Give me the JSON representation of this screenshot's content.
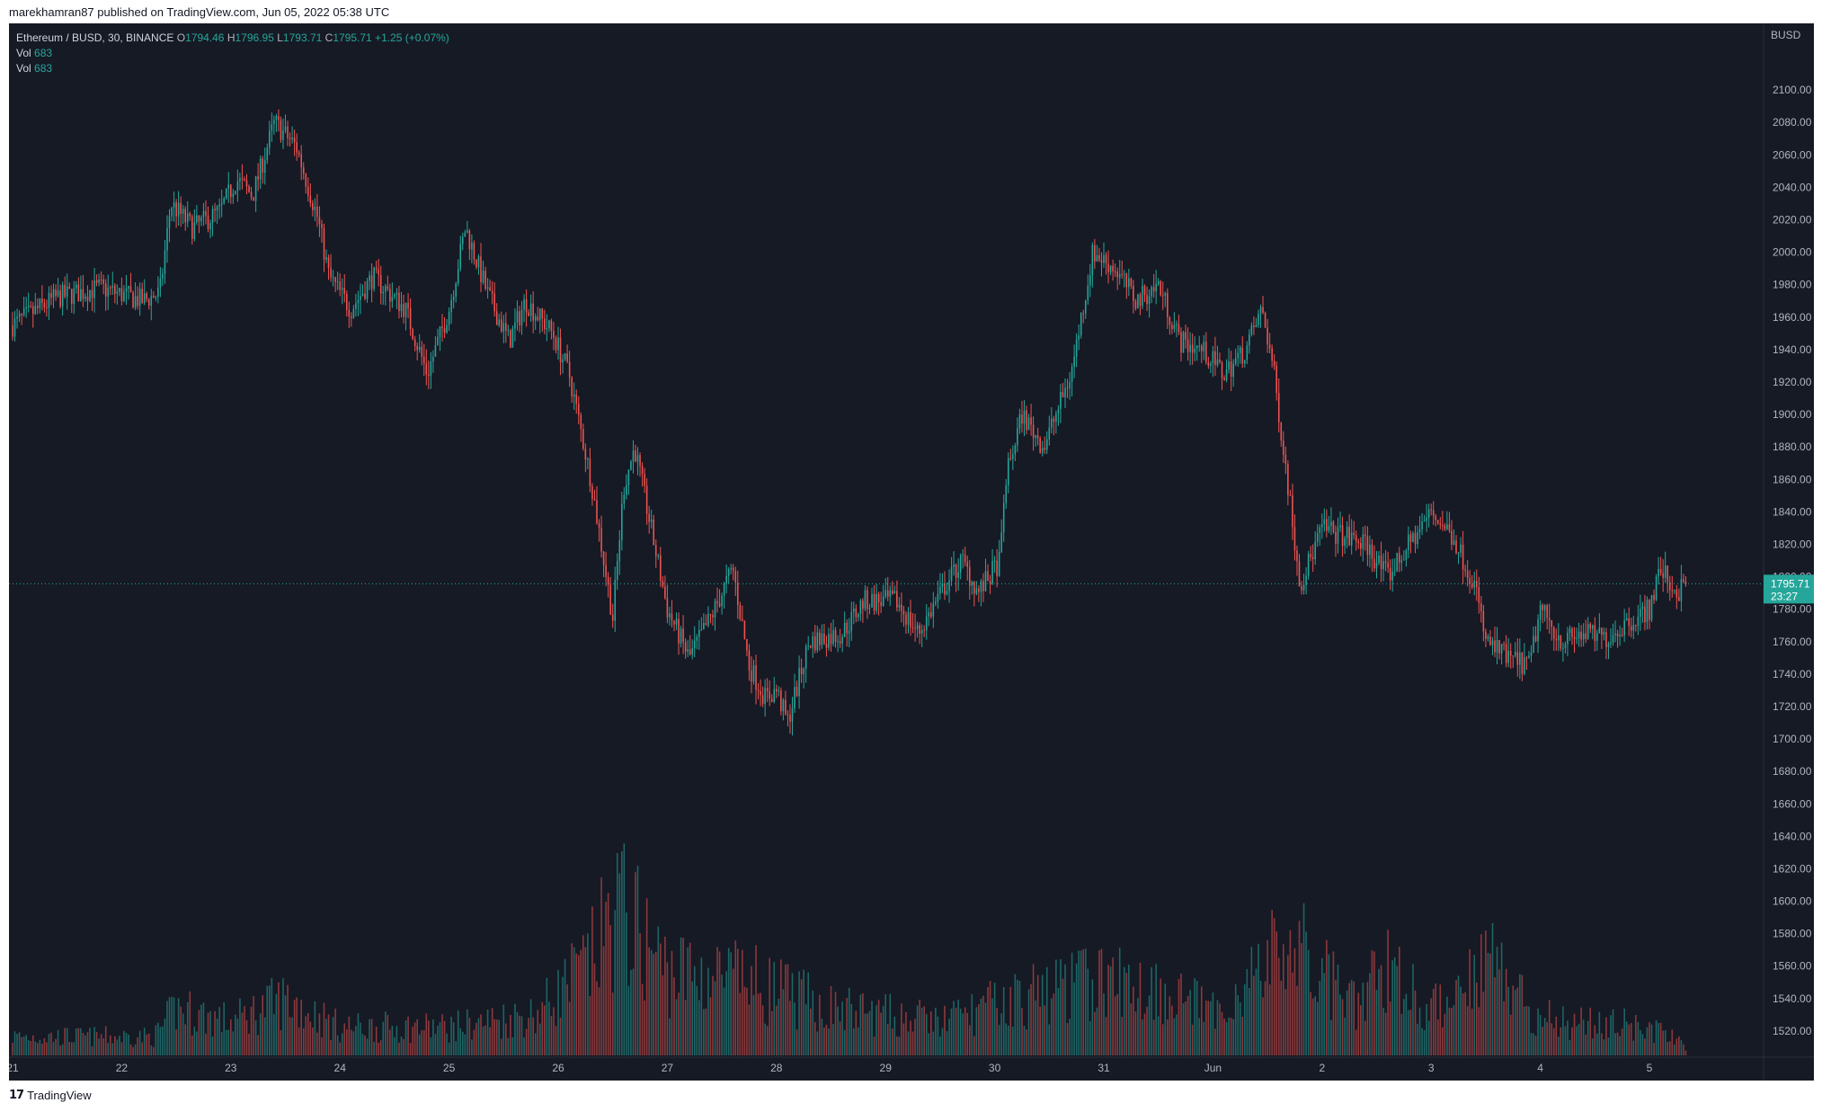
{
  "publish_bar": {
    "text": "marekhamran87 published on TradingView.com, Jun 05, 2022 05:38 UTC"
  },
  "legend": {
    "symbol": "Ethereum / BUSD, 30, BINANCE",
    "open_label": "O",
    "open": "1794.46",
    "high_label": "H",
    "high": "1796.95",
    "low_label": "L",
    "low": "1793.71",
    "close_label": "C",
    "close": "1795.71",
    "change": "+1.25 (+0.07%)",
    "vol_rows": [
      {
        "label": "Vol",
        "value": "683"
      },
      {
        "label": "Vol",
        "value": "683"
      }
    ]
  },
  "footer": {
    "brand": "TradingView",
    "logo": "tradingview-logo-icon"
  },
  "colors": {
    "background": "#161a25",
    "up": "#26a69a",
    "down": "#ef5350",
    "axis_text": "#b2b5be",
    "price_label_bg": "#26a69a"
  },
  "chart_data": {
    "type": "candlestick",
    "currency": "BUSD",
    "interval": "30",
    "ylim": [
      1505,
      2130
    ],
    "y_ticks": [
      1520,
      1540,
      1560,
      1580,
      1600,
      1620,
      1640,
      1660,
      1680,
      1700,
      1720,
      1740,
      1760,
      1780,
      1800,
      1820,
      1840,
      1860,
      1880,
      1900,
      1920,
      1940,
      1960,
      1980,
      2000,
      2020,
      2040,
      2060,
      2080,
      2100
    ],
    "y_tick_labels": [
      "1520.00",
      "1540.00",
      "1560.00",
      "1580.00",
      "1600.00",
      "1620.00",
      "1640.00",
      "1660.00",
      "1680.00",
      "1700.00",
      "1720.00",
      "1740.00",
      "1760.00",
      "1780.00",
      "1800.00",
      "1820.00",
      "1840.00",
      "1860.00",
      "1880.00",
      "1900.00",
      "1920.00",
      "1940.00",
      "1960.00",
      "1980.00",
      "2000.00",
      "2020.00",
      "2040.00",
      "2060.00",
      "2080.00",
      "2100.00"
    ],
    "x_ticks": [
      {
        "label": "21",
        "day": 0
      },
      {
        "label": "22",
        "day": 1
      },
      {
        "label": "23",
        "day": 2
      },
      {
        "label": "24",
        "day": 3
      },
      {
        "label": "25",
        "day": 4
      },
      {
        "label": "26",
        "day": 5
      },
      {
        "label": "27",
        "day": 6
      },
      {
        "label": "28",
        "day": 7
      },
      {
        "label": "29",
        "day": 8
      },
      {
        "label": "30",
        "day": 9
      },
      {
        "label": "31",
        "day": 10
      },
      {
        "label": "Jun",
        "day": 11
      },
      {
        "label": "2",
        "day": 12
      },
      {
        "label": "3",
        "day": 13
      },
      {
        "label": "4",
        "day": 14
      },
      {
        "label": "5",
        "day": 15
      }
    ],
    "last_price": 1795.71,
    "last_price_label": "1795.71",
    "countdown_label": "23:27",
    "price_path": [
      {
        "day": 0.0,
        "price": 1955
      },
      {
        "day": 0.4,
        "price": 1972
      },
      {
        "day": 0.8,
        "price": 1978
      },
      {
        "day": 1.2,
        "price": 1970
      },
      {
        "day": 1.35,
        "price": 1975
      },
      {
        "day": 1.45,
        "price": 2030
      },
      {
        "day": 1.65,
        "price": 2015
      },
      {
        "day": 1.9,
        "price": 2025
      },
      {
        "day": 2.05,
        "price": 2045
      },
      {
        "day": 2.2,
        "price": 2035
      },
      {
        "day": 2.4,
        "price": 2080
      },
      {
        "day": 2.6,
        "price": 2065
      },
      {
        "day": 2.8,
        "price": 2020
      },
      {
        "day": 2.9,
        "price": 1985
      },
      {
        "day": 3.1,
        "price": 1965
      },
      {
        "day": 3.3,
        "price": 1985
      },
      {
        "day": 3.6,
        "price": 1965
      },
      {
        "day": 3.8,
        "price": 1925
      },
      {
        "day": 4.0,
        "price": 1965
      },
      {
        "day": 4.15,
        "price": 2015
      },
      {
        "day": 4.35,
        "price": 1975
      },
      {
        "day": 4.55,
        "price": 1945
      },
      {
        "day": 4.7,
        "price": 1970
      },
      {
        "day": 4.95,
        "price": 1950
      },
      {
        "day": 5.1,
        "price": 1925
      },
      {
        "day": 5.3,
        "price": 1860
      },
      {
        "day": 5.5,
        "price": 1775
      },
      {
        "day": 5.6,
        "price": 1855
      },
      {
        "day": 5.7,
        "price": 1880
      },
      {
        "day": 5.85,
        "price": 1830
      },
      {
        "day": 6.0,
        "price": 1780
      },
      {
        "day": 6.2,
        "price": 1750
      },
      {
        "day": 6.4,
        "price": 1775
      },
      {
        "day": 6.6,
        "price": 1805
      },
      {
        "day": 6.75,
        "price": 1745
      },
      {
        "day": 6.9,
        "price": 1725
      },
      {
        "day": 7.0,
        "price": 1730
      },
      {
        "day": 7.1,
        "price": 1710
      },
      {
        "day": 7.3,
        "price": 1760
      },
      {
        "day": 7.6,
        "price": 1765
      },
      {
        "day": 7.8,
        "price": 1785
      },
      {
        "day": 8.1,
        "price": 1785
      },
      {
        "day": 8.3,
        "price": 1765
      },
      {
        "day": 8.55,
        "price": 1795
      },
      {
        "day": 8.7,
        "price": 1810
      },
      {
        "day": 8.85,
        "price": 1790
      },
      {
        "day": 9.05,
        "price": 1810
      },
      {
        "day": 9.1,
        "price": 1860
      },
      {
        "day": 9.25,
        "price": 1900
      },
      {
        "day": 9.45,
        "price": 1880
      },
      {
        "day": 9.7,
        "price": 1925
      },
      {
        "day": 9.9,
        "price": 2000
      },
      {
        "day": 10.1,
        "price": 1990
      },
      {
        "day": 10.3,
        "price": 1970
      },
      {
        "day": 10.5,
        "price": 1980
      },
      {
        "day": 10.7,
        "price": 1945
      },
      {
        "day": 10.9,
        "price": 1940
      },
      {
        "day": 11.1,
        "price": 1925
      },
      {
        "day": 11.3,
        "price": 1940
      },
      {
        "day": 11.45,
        "price": 1965
      },
      {
        "day": 11.55,
        "price": 1930
      },
      {
        "day": 11.7,
        "price": 1850
      },
      {
        "day": 11.8,
        "price": 1795
      },
      {
        "day": 12.0,
        "price": 1830
      },
      {
        "day": 12.4,
        "price": 1820
      },
      {
        "day": 12.6,
        "price": 1800
      },
      {
        "day": 12.9,
        "price": 1830
      },
      {
        "day": 13.0,
        "price": 1840
      },
      {
        "day": 13.2,
        "price": 1825
      },
      {
        "day": 13.4,
        "price": 1795
      },
      {
        "day": 13.5,
        "price": 1760
      },
      {
        "day": 13.7,
        "price": 1750
      },
      {
        "day": 13.9,
        "price": 1745
      },
      {
        "day": 14.0,
        "price": 1780
      },
      {
        "day": 14.2,
        "price": 1760
      },
      {
        "day": 14.4,
        "price": 1765
      },
      {
        "day": 14.6,
        "price": 1762
      },
      {
        "day": 14.8,
        "price": 1772
      },
      {
        "day": 15.0,
        "price": 1780
      },
      {
        "day": 15.1,
        "price": 1805
      },
      {
        "day": 15.25,
        "price": 1790
      },
      {
        "day": 15.35,
        "price": 1795.71
      }
    ],
    "volume_profile": [
      {
        "day": 0.0,
        "level": 0.1
      },
      {
        "day": 1.3,
        "level": 0.1
      },
      {
        "day": 1.5,
        "level": 0.25
      },
      {
        "day": 2.0,
        "level": 0.18
      },
      {
        "day": 2.5,
        "level": 0.3
      },
      {
        "day": 3.0,
        "level": 0.15
      },
      {
        "day": 4.0,
        "level": 0.15
      },
      {
        "day": 4.8,
        "level": 0.22
      },
      {
        "day": 5.3,
        "level": 0.5
      },
      {
        "day": 5.55,
        "level": 0.8
      },
      {
        "day": 6.0,
        "level": 0.45
      },
      {
        "day": 6.7,
        "level": 0.4
      },
      {
        "day": 7.5,
        "level": 0.25
      },
      {
        "day": 8.5,
        "level": 0.18
      },
      {
        "day": 9.2,
        "level": 0.3
      },
      {
        "day": 9.9,
        "level": 0.4
      },
      {
        "day": 10.6,
        "level": 0.35
      },
      {
        "day": 11.0,
        "level": 0.22
      },
      {
        "day": 11.7,
        "level": 0.6
      },
      {
        "day": 12.3,
        "level": 0.25
      },
      {
        "day": 12.6,
        "level": 0.5
      },
      {
        "day": 13.0,
        "level": 0.22
      },
      {
        "day": 13.5,
        "level": 0.55
      },
      {
        "day": 14.0,
        "level": 0.2
      },
      {
        "day": 15.0,
        "level": 0.15
      },
      {
        "day": 15.35,
        "level": 0.05
      }
    ]
  }
}
